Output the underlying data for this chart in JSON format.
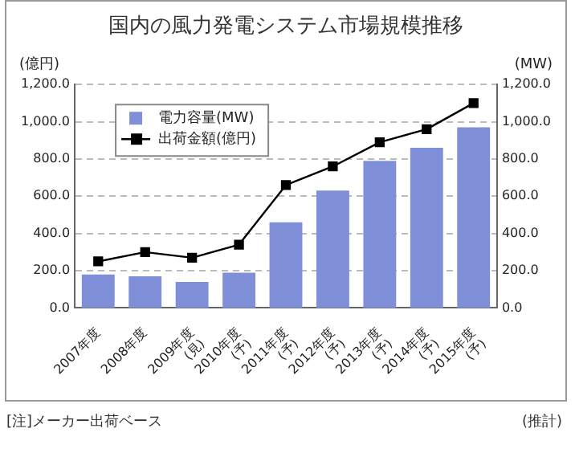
{
  "chart_data": {
    "type": "bar",
    "title": "国内の風力発電システム市場規模推移",
    "categories": [
      "2007年度",
      "2008年度",
      "2009年度\n(見)",
      "2010年度\n(予)",
      "2011年度\n(予)",
      "2012年度\n(予)",
      "2013年度\n(予)",
      "2014年度\n(予)",
      "2015年度\n(予)"
    ],
    "series": [
      {
        "name": "電力容量(MW)",
        "axis": "y2",
        "color": "#8090d8",
        "values": [
          180,
          170,
          140,
          190,
          460,
          630,
          790,
          860,
          970
        ]
      },
      {
        "name": "出荷金額(億円)",
        "type": "line",
        "color": "#000000",
        "values": [
          250,
          300,
          270,
          340,
          660,
          760,
          890,
          960,
          1100
        ]
      }
    ],
    "ylabel": "(億円)",
    "y2label": "(MW)",
    "ylim": [
      0,
      1200
    ],
    "yticks": [
      {
        "value": 0,
        "label": "0.0"
      },
      {
        "value": 200,
        "label": "200.0"
      },
      {
        "value": 400,
        "label": "400.0"
      },
      {
        "value": 600,
        "label": "600.0"
      },
      {
        "value": 800,
        "label": "800.0"
      },
      {
        "value": 1000,
        "label": "1,000.0"
      },
      {
        "value": 1200,
        "label": "1,200.0"
      }
    ],
    "y2lim": [
      0,
      1200
    ],
    "y2ticks": [
      {
        "value": 0,
        "label": "0.0"
      },
      {
        "value": 200,
        "label": "200.0"
      },
      {
        "value": 400,
        "label": "400.0"
      },
      {
        "value": 600,
        "label": "600.0"
      },
      {
        "value": 800,
        "label": "800.0"
      },
      {
        "value": 1000,
        "label": "1,000.0"
      },
      {
        "value": 1200,
        "label": "1,200.0"
      }
    ],
    "grid": "y",
    "legend": "top left",
    "marker": "square",
    "line_style": "solid",
    "annotations": [
      "[注]メーカー出荷ベース",
      "(推計)"
    ]
  }
}
